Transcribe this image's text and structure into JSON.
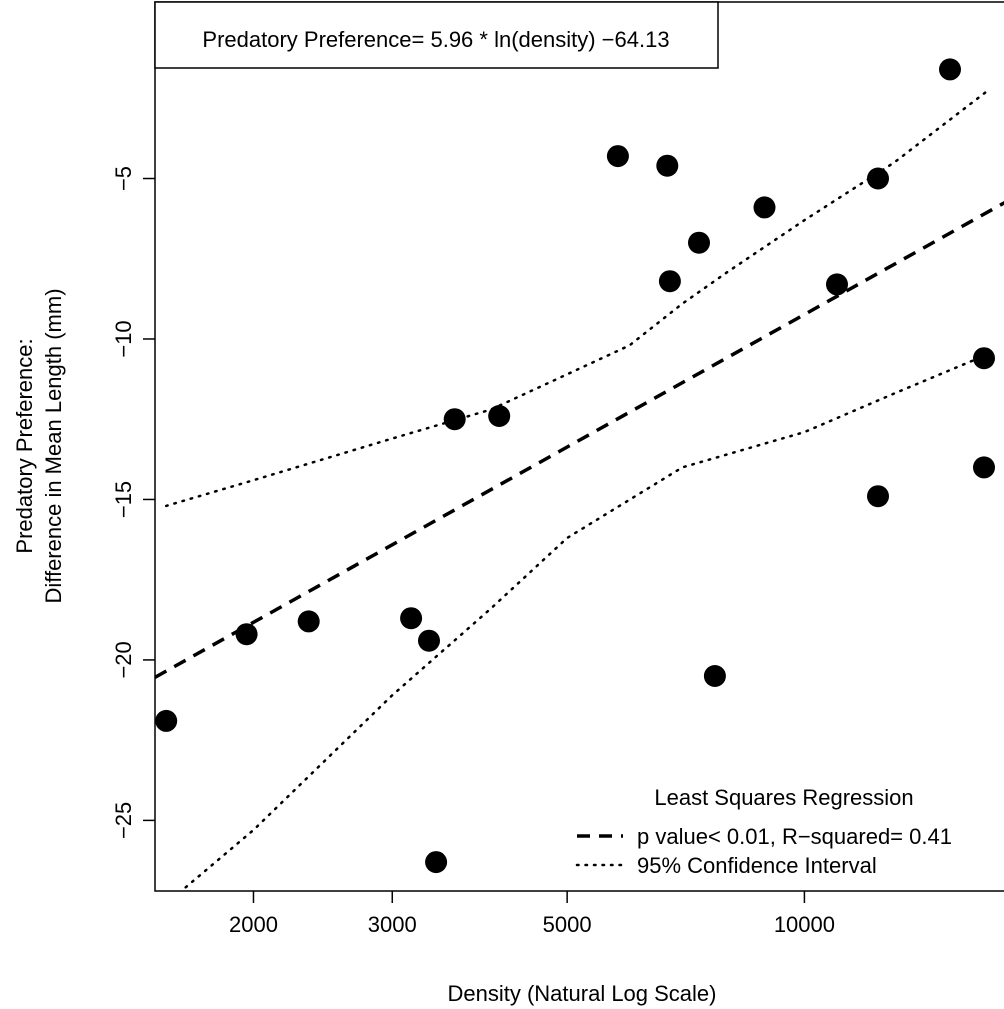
{
  "chart_data": {
    "type": "scatter",
    "xscale": "log",
    "xlabel": "Density (Natural Log Scale)",
    "ylabel": "Predatory Preference:",
    "ylabel_line2": "Difference in Mean Length (mm)",
    "xlim": [
      1500,
      18500
    ],
    "ylim": [
      -27.2,
      0.5
    ],
    "xticks": [
      2000,
      3000,
      5000,
      10000
    ],
    "xtick_labels": [
      "2000",
      "3000",
      "5000",
      "10000"
    ],
    "yticks": [
      -25,
      -20,
      -15,
      -10,
      -5
    ],
    "ytick_labels": [
      "−25",
      "−20",
      "−15",
      "−10",
      "−5"
    ],
    "equation": "Predatory Preference= 5.96 * ln(density) −64.13",
    "regression": {
      "slope": 5.96,
      "intercept": -64.13
    },
    "points": [
      {
        "x": 1550,
        "y": -21.9
      },
      {
        "x": 1960,
        "y": -19.2
      },
      {
        "x": 2350,
        "y": -18.8
      },
      {
        "x": 3170,
        "y": -18.7
      },
      {
        "x": 3340,
        "y": -19.4
      },
      {
        "x": 3410,
        "y": -26.3
      },
      {
        "x": 3600,
        "y": -12.5
      },
      {
        "x": 4100,
        "y": -12.4
      },
      {
        "x": 5800,
        "y": -4.3
      },
      {
        "x": 6700,
        "y": -4.6
      },
      {
        "x": 6750,
        "y": -8.2
      },
      {
        "x": 7350,
        "y": -7.0
      },
      {
        "x": 7700,
        "y": -20.5
      },
      {
        "x": 8900,
        "y": -5.9
      },
      {
        "x": 11000,
        "y": -8.3
      },
      {
        "x": 12400,
        "y": -5.0
      },
      {
        "x": 12400,
        "y": -14.9
      },
      {
        "x": 15300,
        "y": -1.6
      },
      {
        "x": 16900,
        "y": -10.6
      },
      {
        "x": 16900,
        "y": -14.0
      }
    ],
    "ci_upper": [
      [
        1550,
        -15.2
      ],
      [
        2000,
        -14.4
      ],
      [
        3000,
        -13.1
      ],
      [
        4000,
        -12.2
      ],
      [
        5000,
        -11.1
      ],
      [
        6000,
        -10.2
      ],
      [
        7000,
        -8.9
      ],
      [
        8000,
        -7.9
      ],
      [
        10000,
        -6.3
      ],
      [
        13000,
        -4.5
      ],
      [
        17000,
        -2.3
      ]
    ],
    "ci_lower": [
      [
        1550,
        -27.6
      ],
      [
        2000,
        -25.3
      ],
      [
        3000,
        -21.1
      ],
      [
        4000,
        -18.4
      ],
      [
        5000,
        -16.2
      ],
      [
        7000,
        -14.0
      ],
      [
        10000,
        -12.9
      ],
      [
        13000,
        -11.7
      ],
      [
        17000,
        -10.5
      ]
    ],
    "legend": {
      "title": "Least Squares Regression",
      "entries": [
        {
          "label": "p value< 0.01, R−squared= 0.41",
          "style": "dashed"
        },
        {
          "label": "95% Confidence Interval",
          "style": "dotted"
        }
      ],
      "position": "bottom-right"
    },
    "colors": {
      "points": "#000000",
      "lines": "#000000",
      "background": "#ffffff"
    },
    "grid": false
  }
}
